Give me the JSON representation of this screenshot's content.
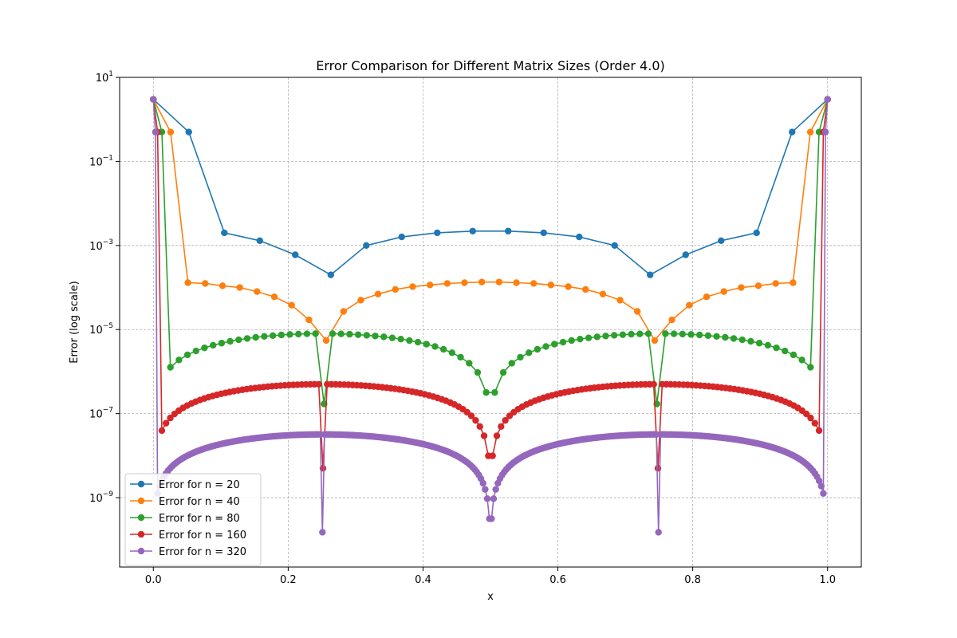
{
  "chart_data": {
    "type": "line",
    "title": "Error Comparison for Different Matrix Sizes (Order 4.0)",
    "xlabel": "x",
    "ylabel": "Error (log scale)",
    "xlim": [
      -0.05,
      1.05
    ],
    "ylim_log10": [
      -10.65,
      1
    ],
    "y_scale": "log",
    "grid": true,
    "legend_position": "lower-left",
    "x_ticks": [
      "0.0",
      "0.2",
      "0.4",
      "0.6",
      "0.8",
      "1.0"
    ],
    "y_ticks": [
      {
        "base": "10",
        "exp": "1"
      },
      {
        "base": "10",
        "exp": "−1"
      },
      {
        "base": "10",
        "exp": "−3"
      },
      {
        "base": "10",
        "exp": "−5"
      },
      {
        "base": "10",
        "exp": "−7"
      },
      {
        "base": "10",
        "exp": "−9"
      }
    ],
    "series": [
      {
        "name": "Error for n = 20",
        "color": "#1f77b4",
        "points": [
          [
            0.0,
            3.0
          ],
          [
            0.0526,
            0.5
          ],
          [
            0.1053,
            0.002
          ],
          [
            0.1579,
            0.0013
          ],
          [
            0.2105,
            0.0006
          ],
          [
            0.2632,
            0.0002
          ],
          [
            0.3158,
            0.001
          ],
          [
            0.3684,
            0.0016
          ],
          [
            0.4211,
            0.002
          ],
          [
            0.4737,
            0.0022
          ],
          [
            0.5263,
            0.0022
          ],
          [
            0.5789,
            0.002
          ],
          [
            0.6316,
            0.0016
          ],
          [
            0.6842,
            0.001
          ],
          [
            0.7368,
            0.0002
          ],
          [
            0.7895,
            0.0006
          ],
          [
            0.8421,
            0.0013
          ],
          [
            0.8947,
            0.002
          ],
          [
            0.9474,
            0.5
          ],
          [
            1.0,
            3.0
          ]
        ]
      },
      {
        "name": "Error for n = 40",
        "color": "#ff7f0e",
        "points": [
          [
            0.0,
            3.0
          ],
          [
            0.0256,
            0.5
          ],
          [
            0.0513,
            0.00013
          ],
          [
            0.0769,
            0.000125
          ],
          [
            0.1026,
            0.00011
          ],
          [
            0.1282,
            0.0001
          ],
          [
            0.1538,
            8e-05
          ],
          [
            0.1795,
            6e-05
          ],
          [
            0.2051,
            3.8e-05
          ],
          [
            0.2308,
            1.7e-05
          ],
          [
            0.2564,
            5.5e-06
          ],
          [
            0.2821,
            2.7e-05
          ],
          [
            0.3077,
            5e-05
          ],
          [
            0.3333,
            7e-05
          ],
          [
            0.359,
            9e-05
          ],
          [
            0.3846,
            0.000105
          ],
          [
            0.4103,
            0.000115
          ],
          [
            0.4359,
            0.000125
          ],
          [
            0.4615,
            0.00013
          ],
          [
            0.4872,
            0.000135
          ],
          [
            0.5128,
            0.000135
          ],
          [
            0.5385,
            0.00013
          ],
          [
            0.5641,
            0.000125
          ],
          [
            0.5897,
            0.000115
          ],
          [
            0.6154,
            0.000105
          ],
          [
            0.641,
            9e-05
          ],
          [
            0.6667,
            7e-05
          ],
          [
            0.6923,
            5e-05
          ],
          [
            0.7179,
            2.7e-05
          ],
          [
            0.7436,
            5.5e-06
          ],
          [
            0.7692,
            1.7e-05
          ],
          [
            0.7949,
            3.8e-05
          ],
          [
            0.8205,
            6e-05
          ],
          [
            0.8462,
            8e-05
          ],
          [
            0.8718,
            0.0001
          ],
          [
            0.8974,
            0.00011
          ],
          [
            0.9231,
            0.000125
          ],
          [
            0.9487,
            0.00013
          ],
          [
            0.9744,
            0.5
          ],
          [
            1.0,
            3.0
          ]
        ]
      }
    ],
    "generated_series": [
      {
        "name": "Error for n = 80",
        "color": "#2ca02c",
        "n": 80,
        "plateau": 8e-06,
        "minimum": 1.7e-07
      },
      {
        "name": "Error for n = 160",
        "color": "#d62728",
        "n": 160,
        "plateau": 5e-07,
        "minimum": 5e-09
      },
      {
        "name": "Error for n = 320",
        "color": "#9467bd",
        "n": 320,
        "plateau": 3.2e-08,
        "minimum": 1.5e-10
      }
    ]
  }
}
